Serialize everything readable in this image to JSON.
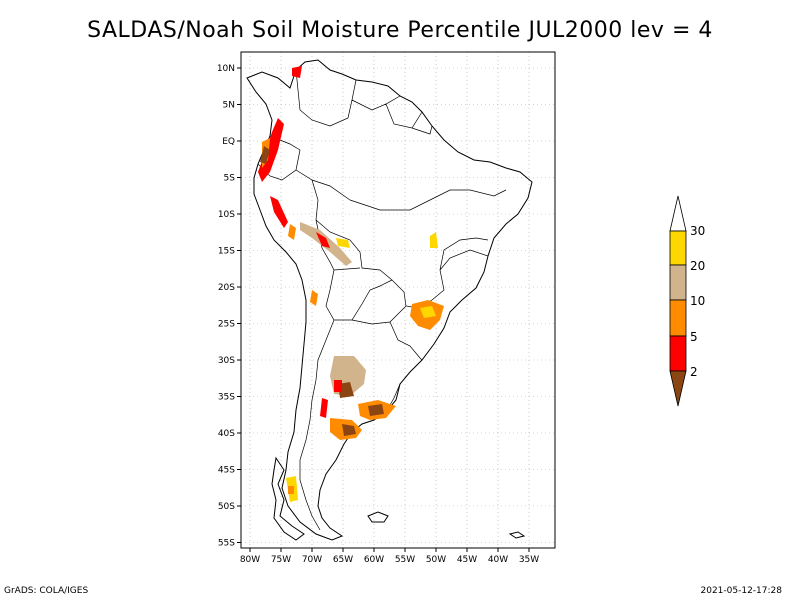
{
  "title": "SALDAS/Noah Soil Moisture Percentile JUL2000 lev = 4",
  "map": {
    "lat_labels": [
      "10N",
      "5N",
      "EQ",
      "5S",
      "10S",
      "15S",
      "20S",
      "25S",
      "30S",
      "35S",
      "40S",
      "45S",
      "50S",
      "55S"
    ],
    "lon_labels": [
      "80W",
      "75W",
      "70W",
      "65W",
      "60W",
      "55W",
      "50W",
      "45W",
      "40W",
      "35W"
    ],
    "frame_color": "#000000",
    "grid_color": "#aaaaaa"
  },
  "colorbar": {
    "labels": [
      "2",
      "5",
      "10",
      "20",
      "30"
    ],
    "colors": {
      "below": "#8b4513",
      "c2_5": "#ff0000",
      "c5_10": "#ff8c00",
      "c10_20": "#d2b48c",
      "c20_30": "#ffd700",
      "above": "#ffffff"
    }
  },
  "footer": {
    "left": "GrADS: COLA/IGES",
    "right": "2021-05-12-17:28"
  }
}
